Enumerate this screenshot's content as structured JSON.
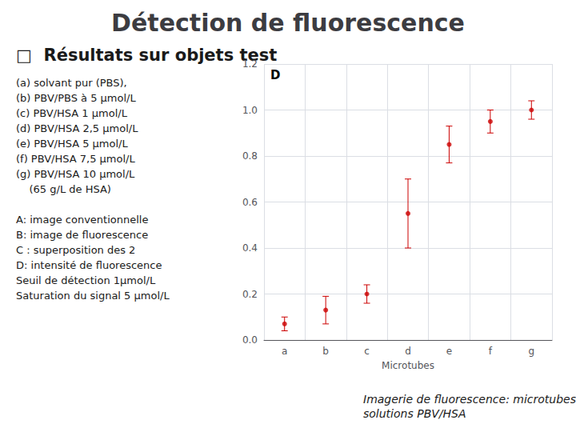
{
  "chart_data": {
    "type": "scatter",
    "title": "Détection de fluorescence",
    "subtitle": "□  Résultats sur objets test",
    "annotations": [
      "(a) solvant pur (PBS),\n(b) PBV/PBS à 5 μmol/L\n(c) PBV/HSA 1 μmol/L\n(d) PBV/HSA 2,5 μmol/L\n(e) PBV/HSA 5 μmol/L\n(f) PBV/HSA 7,5 μmol/L\n(g) PBV/HSA 10 μmol/L\n    (65 g/L de HSA)",
      "A: image conventionnelle\nB: image de fluorescence\nC : superposition des 2\nD: intensité de fluorescence\nSeuil de détection 1μmol/L\nSaturation du signal 5 μmol/L",
      "Imagerie de fluorescence: microtubes contenant des\nsolutions PBV/HSA",
      "D"
    ],
    "xlabel": "Microtubes",
    "categories": [
      "a",
      "b",
      "c",
      "d",
      "e",
      "f",
      "g"
    ],
    "values": [
      0.07,
      0.13,
      0.2,
      0.55,
      0.85,
      0.95,
      1.0
    ],
    "yerr": [
      0.03,
      0.06,
      0.04,
      0.15,
      0.08,
      0.05,
      0.04
    ],
    "color": "#cc0000",
    "marker": "circle",
    "ylim": [
      0.0,
      1.2
    ],
    "yticks": [
      {
        "value": 0.0,
        "label": "0.0"
      },
      0.2,
      0.4,
      0.6,
      0.8,
      {
        "value": 1.0,
        "label": "1.0"
      },
      1.2
    ],
    "grid": true
  }
}
